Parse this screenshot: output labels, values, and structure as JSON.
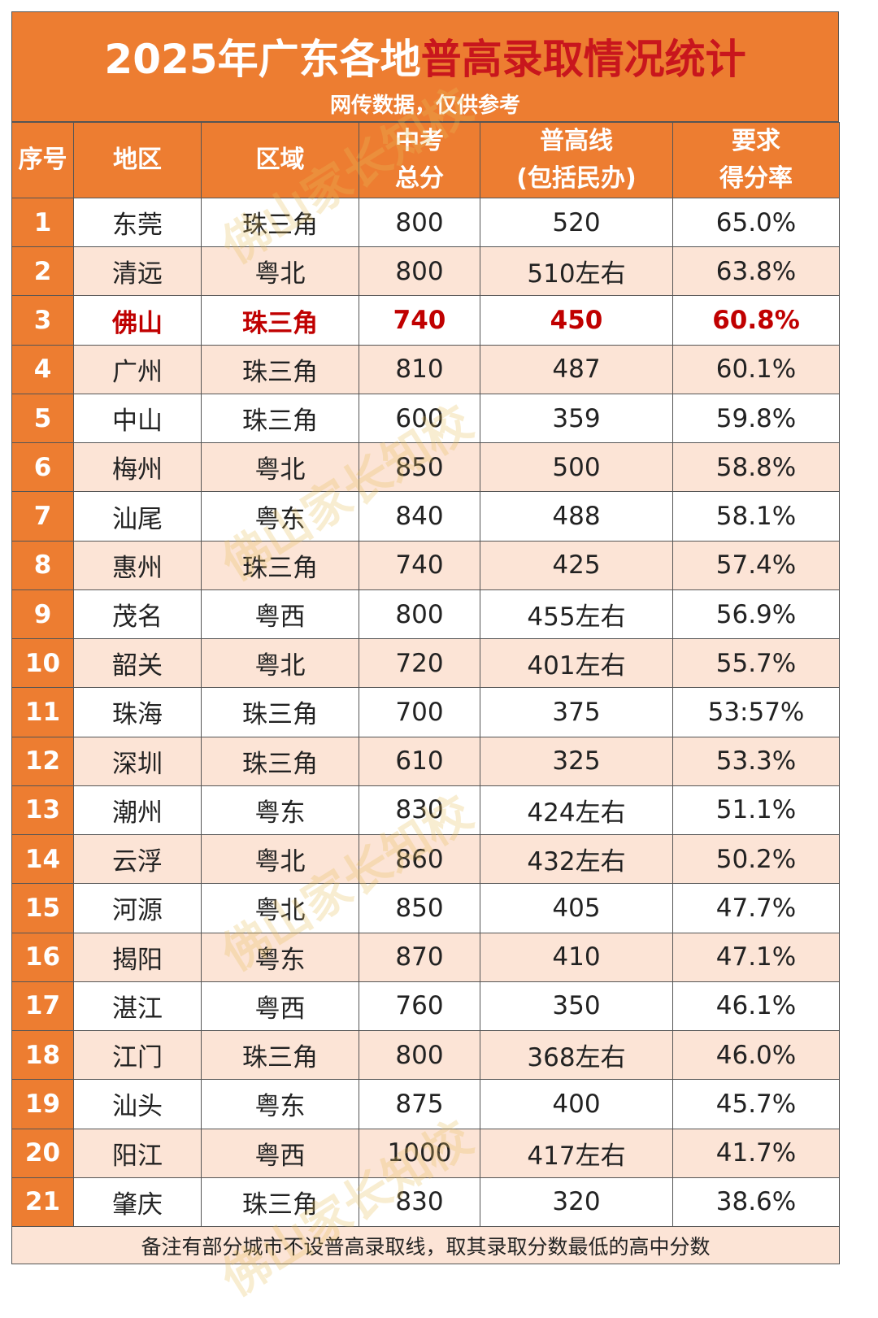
{
  "header": {
    "title": [
      "2025年广东各地",
      "普高录取情况统计"
    ],
    "subtitle": "网传数据，仅供参考"
  },
  "table": {
    "columns": [
      [
        "序号"
      ],
      [
        "地区"
      ],
      [
        "区域"
      ],
      [
        "中考",
        "总分"
      ],
      [
        "普高线",
        "(包括民办)"
      ],
      [
        "要求",
        "得分率"
      ]
    ],
    "rows": [
      [
        "1",
        "东莞",
        "珠三角",
        "800",
        "520",
        "65.0%"
      ],
      [
        "2",
        "清远",
        "粤北",
        "800",
        "510左右",
        "63.8%"
      ],
      [
        "3",
        "佛山",
        "珠三角",
        "740",
        "450",
        "60.8%"
      ],
      [
        "4",
        "广州",
        "珠三角",
        "810",
        "487",
        "60.1%"
      ],
      [
        "5",
        "中山",
        "珠三角",
        "600",
        "359",
        "59.8%"
      ],
      [
        "6",
        "梅州",
        "粤北",
        "850",
        "500",
        "58.8%"
      ],
      [
        "7",
        "汕尾",
        "粤东",
        "840",
        "488",
        "58.1%"
      ],
      [
        "8",
        "惠州",
        "珠三角",
        "740",
        "425",
        "57.4%"
      ],
      [
        "9",
        "茂名",
        "粤西",
        "800",
        "455左右",
        "56.9%"
      ],
      [
        "10",
        "韶关",
        "粤北",
        "720",
        "401左右",
        "55.7%"
      ],
      [
        "11",
        "珠海",
        "珠三角",
        "700",
        "375",
        "53:57%"
      ],
      [
        "12",
        "深圳",
        "珠三角",
        "610",
        "325",
        "53.3%"
      ],
      [
        "13",
        "潮州",
        "粤东",
        "830",
        "424左右",
        "51.1%"
      ],
      [
        "14",
        "云浮",
        "粤北",
        "860",
        "432左右",
        "50.2%"
      ],
      [
        "15",
        "河源",
        "粤北",
        "850",
        "405",
        "47.7%"
      ],
      [
        "16",
        "揭阳",
        "粤东",
        "870",
        "410",
        "47.1%"
      ],
      [
        "17",
        "湛江",
        "粤西",
        "760",
        "350",
        "46.1%"
      ],
      [
        "18",
        "江门",
        "珠三角",
        "800",
        "368左右",
        "46.0%"
      ],
      [
        "19",
        "汕头",
        "粤东",
        "875",
        "400",
        "45.7%"
      ],
      [
        "20",
        "阳江",
        "粤西",
        "1000",
        "417左右",
        "41.7%"
      ],
      [
        "21",
        "肇庆",
        "珠三角",
        "830",
        "320",
        "38.6%"
      ]
    ],
    "highlight_row": 2,
    "footnote": "备注有部分城市不设普高录取线，取其录取分数最低的高中分数"
  },
  "watermark": "佛山家长知校"
}
